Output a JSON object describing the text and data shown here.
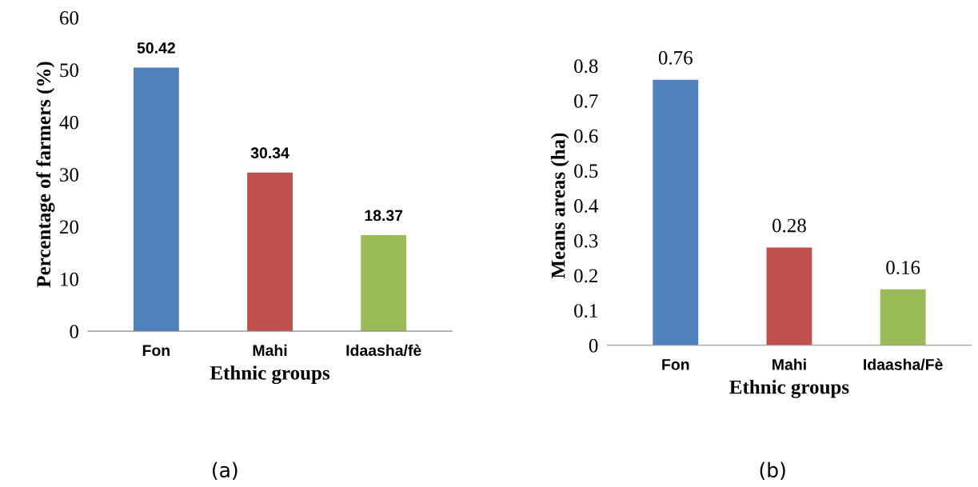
{
  "chart_data": [
    {
      "type": "bar",
      "categories": [
        "Fon",
        "Mahi",
        "Idaasha/fè"
      ],
      "values": [
        50.42,
        30.34,
        18.37
      ],
      "colors": [
        "#4f81bd",
        "#c0504d",
        "#9bbb59"
      ],
      "ylim": [
        0,
        60
      ],
      "yticks": [
        0,
        10,
        20,
        30,
        40,
        50,
        60
      ],
      "xlabel": "Ethnic groups",
      "ylabel": "Percentage of farmers (%)",
      "data_labels": true,
      "grid": false,
      "annotations": [
        "(a)"
      ]
    },
    {
      "type": "bar",
      "categories": [
        "Fon",
        "Mahi",
        "Idaasha/Fè"
      ],
      "values": [
        0.76,
        0.28,
        0.16
      ],
      "colors": [
        "#4f81bd",
        "#c0504d",
        "#9bbb59"
      ],
      "ylim": [
        0,
        0.8
      ],
      "yticks": [
        0,
        0.1,
        0.2,
        0.3,
        0.4,
        0.5,
        0.6,
        0.7,
        0.8
      ],
      "xlabel": "Ethnic groups",
      "ylabel": "Means areas (ha)",
      "data_labels": true,
      "grid": false,
      "annotations": [
        "(b)"
      ]
    }
  ]
}
